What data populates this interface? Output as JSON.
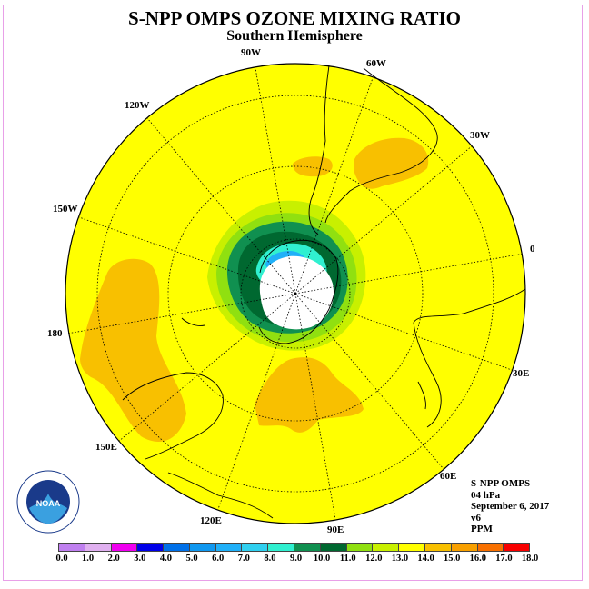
{
  "title": "S-NPP OMPS OZONE MIXING RATIO",
  "subtitle": "Southern Hemisphere",
  "longitude_labels": [
    "90W",
    "60W",
    "30W",
    "0",
    "30E",
    "60E",
    "90E",
    "120E",
    "150E",
    "180",
    "150W",
    "120W"
  ],
  "info": {
    "instrument": "S-NPP OMPS",
    "level": "04 hPa",
    "date": "September 6, 2017",
    "version": "v6",
    "units": "PPM"
  },
  "logo": {
    "text": "NOAA",
    "ring_text": "NATIONAL OCEANIC AND ATMOSPHERIC ADMINISTRATION · U.S. DEPARTMENT OF COMMERCE"
  },
  "colorbar": {
    "labels": [
      "0.0",
      "1.0",
      "2.0",
      "3.0",
      "4.0",
      "5.0",
      "6.0",
      "7.0",
      "8.0",
      "9.0",
      "10.0",
      "11.0",
      "12.0",
      "13.0",
      "14.0",
      "15.0",
      "16.0",
      "17.0",
      "18.0"
    ],
    "colors": [
      "#c080f0",
      "#e0b0f0",
      "#f000f0",
      "#0000e8",
      "#0070e8",
      "#1098f0",
      "#20b0f8",
      "#30d0f0",
      "#30f0d0",
      "#109050",
      "#006830",
      "#90e010",
      "#c8f000",
      "#ffff00",
      "#f8c000",
      "#f8a000",
      "#f87000",
      "#f80000",
      "#805030"
    ]
  },
  "colors": {
    "background": "#ffff00",
    "frame": "#e8a0e8"
  }
}
